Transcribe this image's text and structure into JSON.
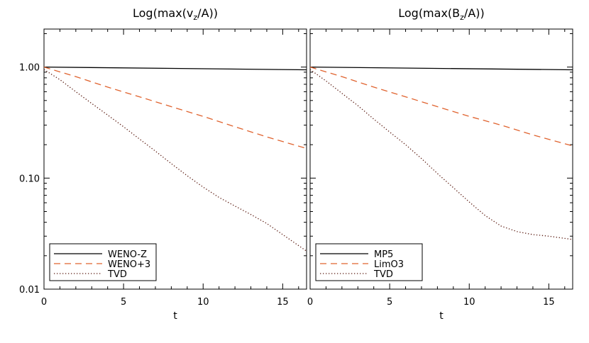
{
  "chart_data": [
    {
      "type": "line",
      "title": "Log(max(v_z/A))",
      "title_parts": {
        "pre": "Log(max(v",
        "sub": "z",
        "post": "/A))"
      },
      "xlabel": "t",
      "ylabel": "",
      "xlim": [
        0,
        16.5
      ],
      "ylim": [
        0.01,
        2.2
      ],
      "y_scale": "log",
      "x_ticks": [
        0,
        5,
        10,
        15
      ],
      "x_tick_labels": [
        "0",
        "5",
        "10",
        "15"
      ],
      "y_ticks": [
        0.01,
        0.1,
        1.0
      ],
      "y_tick_labels": [
        "0.01",
        "0.10",
        "1.00"
      ],
      "grid": false,
      "legend_position": "bottom-left",
      "series": [
        {
          "name": "WENO-Z",
          "color": "#000000",
          "style": "solid",
          "x": [
            0,
            16.5
          ],
          "y": [
            1.0,
            0.945
          ]
        },
        {
          "name": "WENO+3",
          "color": "#e0632f",
          "style": "dashed",
          "x": [
            0,
            2,
            4,
            6,
            8,
            10,
            12,
            14,
            16.5
          ],
          "y": [
            1.0,
            0.82,
            0.66,
            0.54,
            0.44,
            0.36,
            0.29,
            0.235,
            0.185
          ]
        },
        {
          "name": "TVD",
          "color": "#5a1a10",
          "style": "dotted",
          "x": [
            0,
            1,
            2,
            3,
            4,
            5,
            6,
            7,
            8,
            9,
            10,
            11,
            12,
            13,
            14,
            15,
            16.5
          ],
          "y": [
            0.95,
            0.77,
            0.6,
            0.47,
            0.37,
            0.29,
            0.225,
            0.175,
            0.135,
            0.105,
            0.083,
            0.067,
            0.056,
            0.047,
            0.039,
            0.031,
            0.022
          ]
        }
      ]
    },
    {
      "type": "line",
      "title": "Log(max(B_z/A))",
      "title_parts": {
        "pre": "Log(max(B",
        "sub": "z",
        "post": "/A))"
      },
      "xlabel": "t",
      "ylabel": "",
      "xlim": [
        0,
        16.5
      ],
      "ylim": [
        0.01,
        2.2
      ],
      "y_scale": "log",
      "x_ticks": [
        0,
        5,
        10,
        15
      ],
      "x_tick_labels": [
        "0",
        "5",
        "10",
        "15"
      ],
      "y_ticks": [
        0.01,
        0.1,
        1.0
      ],
      "y_tick_labels": [],
      "grid": false,
      "legend_position": "bottom-left",
      "series": [
        {
          "name": "MP5",
          "color": "#000000",
          "style": "solid",
          "x": [
            0,
            16.5
          ],
          "y": [
            1.0,
            0.945
          ]
        },
        {
          "name": "LimO3",
          "color": "#e0632f",
          "style": "dashed",
          "x": [
            0,
            2,
            4,
            6,
            8,
            10,
            12,
            14,
            16.5
          ],
          "y": [
            1.0,
            0.82,
            0.66,
            0.54,
            0.44,
            0.36,
            0.3,
            0.245,
            0.195
          ]
        },
        {
          "name": "TVD",
          "color": "#5a1a10",
          "style": "dotted",
          "x": [
            0,
            1,
            2,
            3,
            4,
            5,
            6,
            7,
            8,
            9,
            10,
            11,
            12,
            13,
            14,
            15,
            16.5
          ],
          "y": [
            0.95,
            0.75,
            0.58,
            0.45,
            0.34,
            0.26,
            0.2,
            0.15,
            0.11,
            0.082,
            0.061,
            0.046,
            0.037,
            0.033,
            0.031,
            0.03,
            0.028
          ]
        }
      ]
    }
  ]
}
